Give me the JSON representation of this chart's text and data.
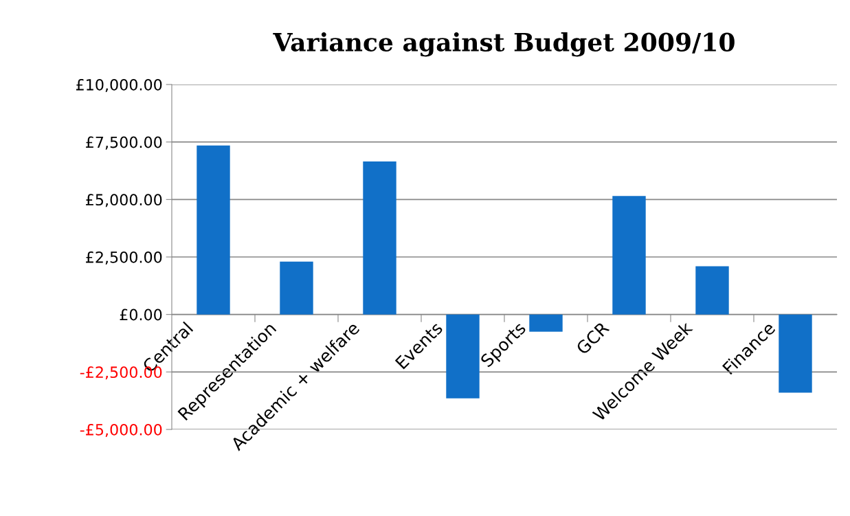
{
  "chart_data": {
    "type": "bar",
    "title": "Variance against Budget 2009/10",
    "categories": [
      "Central",
      "Representation",
      "Academic + welfare",
      "Events",
      "Sports",
      "GCR",
      "Welcome Week",
      "Finance"
    ],
    "values": [
      7350,
      2300,
      6650,
      -3650,
      -750,
      5150,
      2100,
      -3400
    ],
    "color": "#1170c8",
    "ylim": [
      -5000,
      10000
    ],
    "yticks": [
      {
        "value": -5000,
        "label": "-£5,000.00"
      },
      {
        "value": -2500,
        "label": "-£2,500.00"
      },
      {
        "value": 0,
        "label": "£0.00"
      },
      {
        "value": 2500,
        "label": "£2,500.00"
      },
      {
        "value": 5000,
        "label": "£5,000.00"
      },
      {
        "value": 7500,
        "label": "£7,500.00"
      },
      {
        "value": 10000,
        "label": "£10,000.00"
      }
    ],
    "grid": "y"
  }
}
